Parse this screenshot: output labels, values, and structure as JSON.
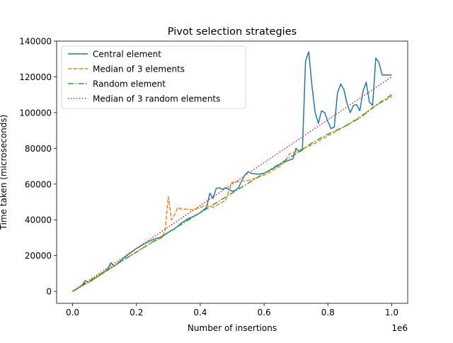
{
  "chart_data": {
    "type": "line",
    "title": "Pivot selection strategies",
    "xlabel": "Number of insertions",
    "ylabel": "Time taken (microseconds)",
    "x_offset_label": "1e6",
    "xlim": [
      -0.05,
      1.05
    ],
    "ylim": [
      -6700,
      140000
    ],
    "x_ticks": [
      0.0,
      0.2,
      0.4,
      0.6,
      0.8,
      1.0
    ],
    "x_tick_labels": [
      "0.0",
      "0.2",
      "0.4",
      "0.6",
      "0.8",
      "1.0"
    ],
    "y_ticks": [
      0,
      20000,
      40000,
      60000,
      80000,
      100000,
      120000,
      140000
    ],
    "y_tick_labels": [
      "0",
      "20000",
      "40000",
      "60000",
      "80000",
      "100000",
      "120000",
      "140000"
    ],
    "legend_position": "top-left",
    "grid": false,
    "series": [
      {
        "name": "Central element",
        "color": "#1f77b4",
        "dash": "solid",
        "x": [
          0.0,
          0.02,
          0.03,
          0.04,
          0.05,
          0.06,
          0.08,
          0.1,
          0.11,
          0.12,
          0.13,
          0.15,
          0.17,
          0.2,
          0.22,
          0.24,
          0.26,
          0.28,
          0.3,
          0.32,
          0.34,
          0.36,
          0.38,
          0.4,
          0.42,
          0.43,
          0.44,
          0.45,
          0.46,
          0.47,
          0.48,
          0.49,
          0.5,
          0.51,
          0.52,
          0.53,
          0.54,
          0.55,
          0.56,
          0.58,
          0.6,
          0.62,
          0.64,
          0.66,
          0.68,
          0.69,
          0.7,
          0.71,
          0.72,
          0.73,
          0.74,
          0.75,
          0.76,
          0.77,
          0.78,
          0.79,
          0.8,
          0.81,
          0.82,
          0.83,
          0.84,
          0.85,
          0.86,
          0.87,
          0.88,
          0.89,
          0.9,
          0.91,
          0.92,
          0.93,
          0.94,
          0.95,
          0.96,
          0.97,
          0.98,
          0.99,
          1.0
        ],
        "y": [
          0,
          2000,
          3500,
          6000,
          5000,
          6000,
          8500,
          11000,
          12500,
          16000,
          14000,
          17000,
          20000,
          24000,
          26000,
          28000,
          29500,
          30500,
          33000,
          35000,
          38000,
          40500,
          42000,
          44000,
          47000,
          55000,
          52000,
          57500,
          58000,
          57000,
          58000,
          57000,
          56000,
          56500,
          58000,
          62000,
          65000,
          67000,
          66000,
          65500,
          66000,
          68000,
          70000,
          72000,
          73500,
          74000,
          80000,
          78000,
          79000,
          129000,
          134000,
          115000,
          100000,
          94000,
          101000,
          100000,
          95000,
          91000,
          92000,
          111000,
          116000,
          113000,
          105000,
          100000,
          104000,
          104500,
          101000,
          112000,
          117000,
          106000,
          104000,
          130500,
          128000,
          121000,
          121000,
          121000,
          121000
        ],
        "trim_to": 0.99
      },
      {
        "name": "Median of 3 elements",
        "color": "#ff7f0e",
        "dash": "dashed",
        "x": [
          0.0,
          0.05,
          0.1,
          0.15,
          0.2,
          0.25,
          0.28,
          0.29,
          0.3,
          0.31,
          0.32,
          0.33,
          0.34,
          0.36,
          0.38,
          0.4,
          0.42,
          0.44,
          0.46,
          0.48,
          0.5,
          0.55,
          0.6,
          0.65,
          0.67,
          0.68,
          0.7,
          0.75,
          0.8,
          0.85,
          0.9,
          0.95,
          1.0
        ],
        "y": [
          0,
          5000,
          10500,
          16500,
          22000,
          27500,
          30000,
          34000,
          53000,
          40000,
          43000,
          47000,
          46000,
          46000,
          45500,
          47000,
          48000,
          47000,
          49000,
          51000,
          61000,
          62000,
          65000,
          70000,
          74000,
          77000,
          78000,
          82000,
          87000,
          92000,
          97500,
          104000,
          109000
        ]
      },
      {
        "name": "Random element",
        "color": "#2ca02c",
        "dash": "dashdot",
        "x": [
          0.0,
          0.05,
          0.1,
          0.15,
          0.2,
          0.25,
          0.3,
          0.35,
          0.4,
          0.45,
          0.5,
          0.55,
          0.6,
          0.65,
          0.7,
          0.75,
          0.8,
          0.85,
          0.9,
          0.95,
          1.0
        ],
        "y": [
          0,
          5500,
          11000,
          16500,
          22000,
          27500,
          33000,
          38500,
          44000,
          49500,
          55000,
          60500,
          66000,
          71500,
          77000,
          83000,
          88000,
          92000,
          97000,
          104000,
          110000
        ]
      },
      {
        "name": "Median of 3 random elements",
        "color": "#d62728",
        "dash": "dotted",
        "x": [
          0.0,
          0.05,
          0.1,
          0.15,
          0.2,
          0.25,
          0.3,
          0.35,
          0.4,
          0.45,
          0.5,
          0.55,
          0.6,
          0.65,
          0.7,
          0.75,
          0.8,
          0.85,
          0.9,
          0.95,
          1.0
        ],
        "y": [
          0,
          6000,
          12000,
          18000,
          24000,
          30000,
          36000,
          42000,
          48000,
          54000,
          60000,
          66000,
          72000,
          78000,
          84000,
          90000,
          96000,
          102000,
          108000,
          114000,
          120000
        ]
      }
    ]
  }
}
